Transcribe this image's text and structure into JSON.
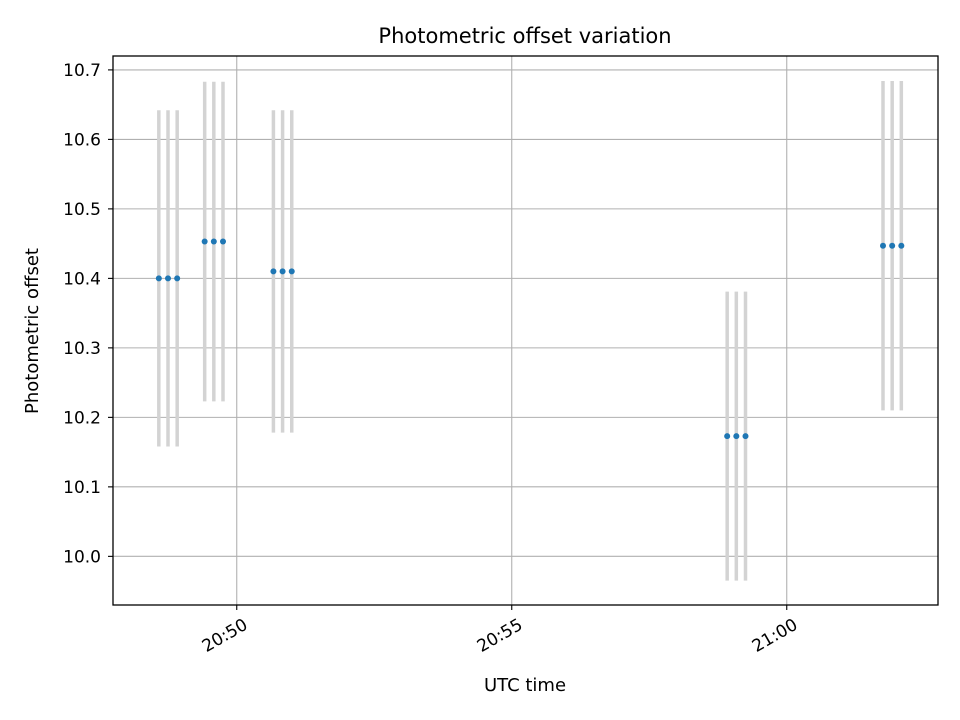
{
  "chart_data": {
    "type": "scatter",
    "title": "Photometric offset variation",
    "xlabel": "UTC time",
    "ylabel": "Photometric offset",
    "x_ticks": [
      "20:50",
      "20:55",
      "21:00"
    ],
    "x_tick_values": [
      "20:50",
      "20:55",
      "21:00"
    ],
    "y_ticks": [
      "10.0",
      "10.1",
      "10.2",
      "10.3",
      "10.4",
      "10.5",
      "10.6",
      "10.7"
    ],
    "xlim": [
      "20:47:45",
      "21:02:45"
    ],
    "ylim": [
      9.93,
      10.72
    ],
    "grid": true,
    "colors": {
      "points": "#1f77b4",
      "errorbars": "#d3d3d3",
      "grid": "#b0b0b0"
    },
    "points": [
      {
        "x": "20:48:35",
        "y": 10.4,
        "yerr": 0.242
      },
      {
        "x": "20:48:45",
        "y": 10.4,
        "yerr": 0.242
      },
      {
        "x": "20:48:55",
        "y": 10.4,
        "yerr": 0.242
      },
      {
        "x": "20:49:25",
        "y": 10.453,
        "yerr": 0.23
      },
      {
        "x": "20:49:35",
        "y": 10.453,
        "yerr": 0.23
      },
      {
        "x": "20:49:45",
        "y": 10.453,
        "yerr": 0.23
      },
      {
        "x": "20:50:40",
        "y": 10.41,
        "yerr": 0.232
      },
      {
        "x": "20:50:50",
        "y": 10.41,
        "yerr": 0.232
      },
      {
        "x": "20:51:00",
        "y": 10.41,
        "yerr": 0.232
      },
      {
        "x": "20:58:55",
        "y": 10.173,
        "yerr": 0.208
      },
      {
        "x": "20:59:05",
        "y": 10.173,
        "yerr": 0.208
      },
      {
        "x": "20:59:15",
        "y": 10.173,
        "yerr": 0.208
      },
      {
        "x": "21:01:45",
        "y": 10.447,
        "yerr": 0.237
      },
      {
        "x": "21:01:55",
        "y": 10.447,
        "yerr": 0.237
      },
      {
        "x": "21:02:05",
        "y": 10.447,
        "yerr": 0.237
      }
    ]
  }
}
